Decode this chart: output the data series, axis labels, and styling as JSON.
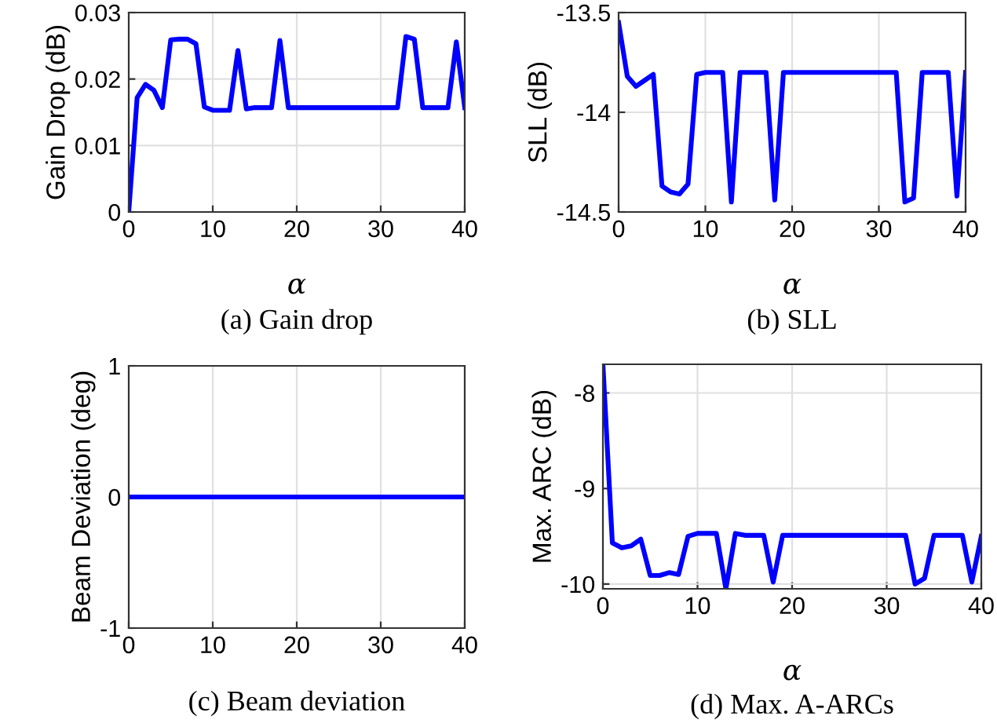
{
  "chart_data": [
    {
      "type": "line",
      "xlabel": "α",
      "ylabel": "Gain Drop (dB)",
      "annotations": [
        "(a) Gain drop"
      ],
      "grid": true,
      "xlim": [
        0,
        40
      ],
      "xticks": [
        0,
        10,
        20,
        30,
        40
      ],
      "ylim": [
        0,
        0.03
      ],
      "yticks": [
        0,
        0.01,
        0.02,
        0.03
      ],
      "series": [
        {
          "color": "#0000ff",
          "x": [
            0,
            1,
            2,
            3,
            4,
            5,
            6,
            7,
            8,
            9,
            10,
            11,
            12,
            13,
            14,
            15,
            17,
            18,
            19,
            32,
            33,
            34,
            35,
            38,
            39,
            40
          ],
          "values": [
            0,
            0.0172,
            0.0192,
            0.0183,
            0.0157,
            0.0259,
            0.026,
            0.026,
            0.0253,
            0.0158,
            0.0153,
            0.0153,
            0.0153,
            0.0243,
            0.0155,
            0.0157,
            0.0157,
            0.0258,
            0.0157,
            0.0157,
            0.0264,
            0.026,
            0.0157,
            0.0157,
            0.0256,
            0.0157
          ]
        }
      ]
    },
    {
      "type": "line",
      "xlabel": "α",
      "ylabel": "SLL (dB)",
      "annotations": [
        "(b) SLL"
      ],
      "grid": true,
      "xlim": [
        0,
        40
      ],
      "xticks": [
        0,
        10,
        20,
        30,
        40
      ],
      "ylim": [
        -14.5,
        -13.5
      ],
      "yticks": [
        -14.5,
        -14,
        -13.5
      ],
      "series": [
        {
          "color": "#0000ff",
          "x": [
            0,
            1,
            2,
            3,
            4,
            5,
            6,
            7,
            8,
            9,
            10,
            12,
            13,
            14,
            17,
            18,
            19,
            32,
            33,
            34,
            35,
            38,
            39,
            40
          ],
          "values": [
            -13.55,
            -13.82,
            -13.87,
            -13.84,
            -13.81,
            -14.37,
            -14.4,
            -14.41,
            -14.36,
            -13.81,
            -13.8,
            -13.8,
            -14.45,
            -13.8,
            -13.8,
            -14.44,
            -13.8,
            -13.8,
            -14.45,
            -14.43,
            -13.8,
            -13.8,
            -14.42,
            -13.8
          ]
        }
      ]
    },
    {
      "type": "line",
      "ylabel": "Beam Deviation (deg)",
      "annotations": [
        "(c) Beam deviation"
      ],
      "grid": true,
      "xlim": [
        0,
        40
      ],
      "xticks": [
        0,
        10,
        20,
        30,
        40
      ],
      "ylim": [
        -1,
        1
      ],
      "yticks": [
        -1,
        0,
        1
      ],
      "series": [
        {
          "color": "#0000ff",
          "x": [
            0,
            40
          ],
          "values": [
            0,
            0
          ]
        }
      ]
    },
    {
      "type": "line",
      "xlabel": "α",
      "ylabel": "Max. ARC (dB)",
      "annotations": [
        "(d) Max. A-ARCs"
      ],
      "grid": true,
      "xlim": [
        0,
        40
      ],
      "xticks": [
        0,
        10,
        20,
        30,
        40
      ],
      "ylim": [
        -10.05,
        -7.7
      ],
      "yticks": [
        -10,
        -9,
        -8
      ],
      "series": [
        {
          "color": "#0000ff",
          "x": [
            0,
            1,
            2,
            3,
            4,
            5,
            6,
            7,
            8,
            9,
            10,
            12,
            13,
            14,
            15,
            17,
            18,
            19,
            32,
            33,
            34,
            35,
            38,
            39,
            40
          ],
          "values": [
            -7.7,
            -9.57,
            -9.62,
            -9.6,
            -9.53,
            -9.91,
            -9.91,
            -9.88,
            -9.9,
            -9.5,
            -9.47,
            -9.47,
            -10.05,
            -9.47,
            -9.49,
            -9.49,
            -9.98,
            -9.49,
            -9.49,
            -10.0,
            -9.94,
            -9.49,
            -9.49,
            -9.98,
            -9.5
          ]
        }
      ]
    }
  ]
}
